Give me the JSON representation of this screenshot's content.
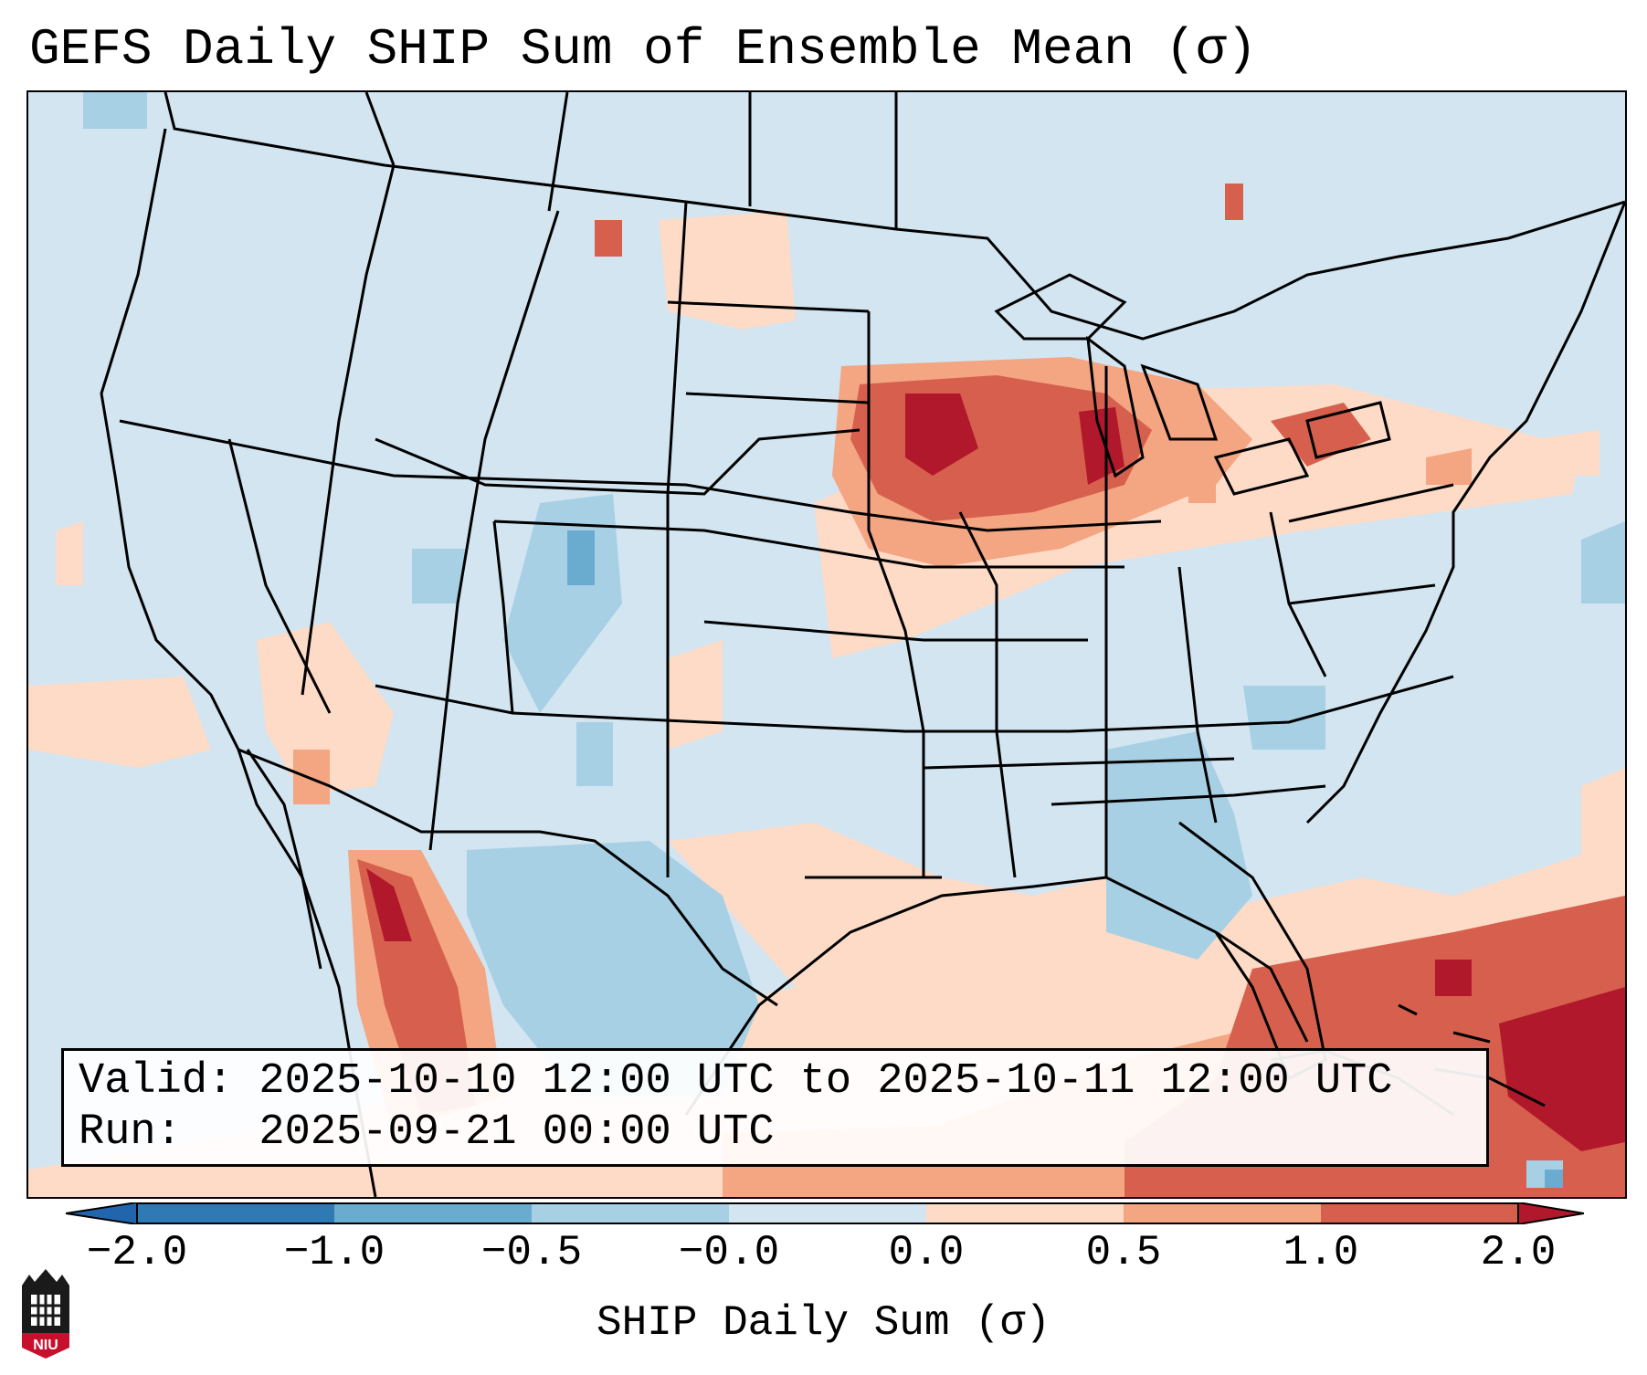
{
  "title": "GEFS Daily SHIP Sum of Ensemble Mean (σ)",
  "info": {
    "valid": "Valid: 2025-10-10 12:00 UTC to 2025-10-11 12:00 UTC",
    "run": "Run:   2025-09-21 00:00 UTC"
  },
  "colorbar": {
    "label": "SHIP Daily Sum (σ)",
    "ticks": [
      "−2.0",
      "−1.0",
      "−0.5",
      "−0.0",
      "0.0",
      "0.5",
      "1.0",
      "2.0"
    ],
    "colors": [
      "#2f79b5",
      "#6aacd0",
      "#a7d0e4",
      "#d2e5f0",
      "#fddbc7",
      "#f4a582",
      "#d6604d",
      "#b2182b"
    ]
  },
  "logo": {
    "text": "NIU",
    "color": "#c8102e"
  }
}
